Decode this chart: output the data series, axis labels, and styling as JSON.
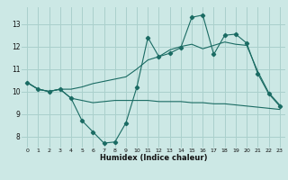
{
  "xlabel": "Humidex (Indice chaleur)",
  "bg_color": "#cce8e5",
  "grid_color": "#aad0cc",
  "line_color": "#1a6b63",
  "x": [
    0,
    1,
    2,
    3,
    4,
    5,
    6,
    7,
    8,
    9,
    10,
    11,
    12,
    13,
    14,
    15,
    16,
    17,
    18,
    19,
    20,
    21,
    22,
    23
  ],
  "line1": [
    10.4,
    10.1,
    10.0,
    10.1,
    10.1,
    10.2,
    10.35,
    10.45,
    10.55,
    10.65,
    11.0,
    11.4,
    11.55,
    11.85,
    12.0,
    12.1,
    11.9,
    12.05,
    12.2,
    12.1,
    12.05,
    10.9,
    9.95,
    9.4
  ],
  "line2": [
    10.4,
    10.1,
    10.0,
    10.1,
    9.7,
    8.7,
    8.2,
    7.7,
    7.75,
    8.6,
    10.2,
    12.4,
    11.55,
    11.7,
    11.95,
    13.3,
    13.4,
    11.65,
    12.5,
    12.55,
    12.15,
    10.8,
    9.9,
    9.35
  ],
  "line3": [
    10.4,
    10.1,
    10.0,
    10.1,
    9.7,
    9.6,
    9.5,
    9.55,
    9.6,
    9.6,
    9.6,
    9.6,
    9.55,
    9.55,
    9.55,
    9.5,
    9.5,
    9.45,
    9.45,
    9.4,
    9.35,
    9.3,
    9.25,
    9.2
  ],
  "ylim": [
    7.5,
    13.75
  ],
  "yticks": [
    8,
    9,
    10,
    11,
    12,
    13
  ],
  "xticks": [
    0,
    1,
    2,
    3,
    4,
    5,
    6,
    7,
    8,
    9,
    10,
    11,
    12,
    13,
    14,
    15,
    16,
    17,
    18,
    19,
    20,
    21,
    22,
    23
  ]
}
